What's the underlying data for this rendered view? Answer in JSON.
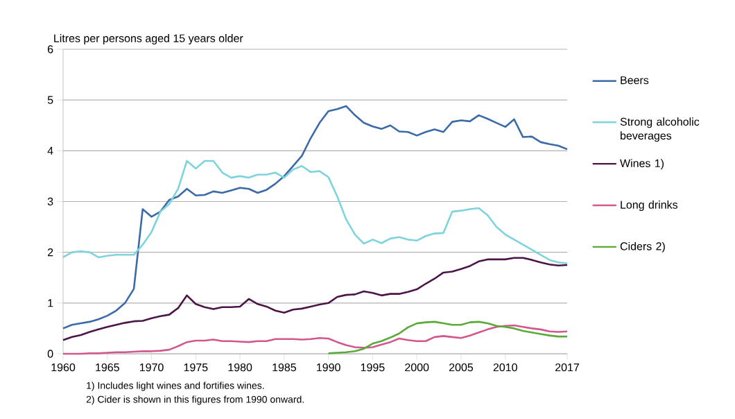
{
  "chart_data": {
    "type": "line",
    "ylabel": "Litres per persons aged 15 years older",
    "x": [
      1960,
      1961,
      1962,
      1963,
      1964,
      1965,
      1966,
      1967,
      1968,
      1969,
      1970,
      1971,
      1972,
      1973,
      1974,
      1975,
      1976,
      1977,
      1978,
      1979,
      1980,
      1981,
      1982,
      1983,
      1984,
      1985,
      1986,
      1987,
      1988,
      1989,
      1990,
      1991,
      1992,
      1993,
      1994,
      1995,
      1996,
      1997,
      1998,
      1999,
      2000,
      2001,
      2002,
      2003,
      2004,
      2005,
      2006,
      2007,
      2008,
      2009,
      2010,
      2011,
      2012,
      2013,
      2014,
      2015,
      2016,
      2017
    ],
    "series": [
      {
        "name": "Beers",
        "color": "#3a6aa8",
        "values": [
          0.5,
          0.57,
          0.6,
          0.63,
          0.68,
          0.75,
          0.85,
          1.0,
          1.28,
          2.85,
          2.7,
          2.8,
          3.03,
          3.1,
          3.25,
          3.12,
          3.13,
          3.2,
          3.17,
          3.22,
          3.27,
          3.25,
          3.17,
          3.23,
          3.35,
          3.5,
          3.7,
          3.9,
          4.25,
          4.55,
          4.78,
          4.82,
          4.88,
          4.7,
          4.55,
          4.48,
          4.43,
          4.5,
          4.38,
          4.37,
          4.3,
          4.37,
          4.42,
          4.37,
          4.57,
          4.6,
          4.58,
          4.7,
          4.63,
          4.55,
          4.47,
          4.62,
          4.27,
          4.28,
          4.17,
          4.13,
          4.1,
          4.03
        ]
      },
      {
        "name": "Strong alcoholic beverages",
        "color": "#7fd3dc",
        "values": [
          1.9,
          2.0,
          2.02,
          2.0,
          1.9,
          1.93,
          1.95,
          1.95,
          1.95,
          2.15,
          2.4,
          2.8,
          2.95,
          3.25,
          3.8,
          3.65,
          3.8,
          3.8,
          3.57,
          3.47,
          3.5,
          3.47,
          3.53,
          3.53,
          3.57,
          3.47,
          3.63,
          3.7,
          3.58,
          3.6,
          3.48,
          3.1,
          2.65,
          2.35,
          2.17,
          2.25,
          2.18,
          2.27,
          2.3,
          2.25,
          2.23,
          2.32,
          2.37,
          2.38,
          2.8,
          2.82,
          2.85,
          2.87,
          2.73,
          2.5,
          2.35,
          2.25,
          2.15,
          2.05,
          1.95,
          1.85,
          1.8,
          1.78
        ]
      },
      {
        "name": "Wines 1)",
        "color": "#4b1548",
        "values": [
          0.27,
          0.33,
          0.37,
          0.43,
          0.48,
          0.53,
          0.57,
          0.61,
          0.64,
          0.65,
          0.7,
          0.74,
          0.77,
          0.9,
          1.15,
          0.98,
          0.92,
          0.88,
          0.92,
          0.92,
          0.93,
          1.08,
          0.98,
          0.93,
          0.85,
          0.81,
          0.87,
          0.89,
          0.93,
          0.97,
          1.0,
          1.12,
          1.16,
          1.17,
          1.23,
          1.2,
          1.15,
          1.18,
          1.18,
          1.22,
          1.27,
          1.38,
          1.48,
          1.6,
          1.62,
          1.67,
          1.73,
          1.82,
          1.86,
          1.86,
          1.86,
          1.89,
          1.89,
          1.85,
          1.8,
          1.76,
          1.74,
          1.75
        ]
      },
      {
        "name": "Long drinks",
        "color": "#d2578b",
        "values": [
          0.0,
          0.0,
          0.0,
          0.01,
          0.01,
          0.02,
          0.03,
          0.03,
          0.04,
          0.05,
          0.05,
          0.06,
          0.08,
          0.15,
          0.23,
          0.26,
          0.26,
          0.28,
          0.25,
          0.25,
          0.24,
          0.23,
          0.25,
          0.25,
          0.29,
          0.29,
          0.29,
          0.28,
          0.29,
          0.31,
          0.3,
          0.23,
          0.17,
          0.13,
          0.12,
          0.13,
          0.18,
          0.23,
          0.3,
          0.27,
          0.25,
          0.25,
          0.33,
          0.35,
          0.33,
          0.31,
          0.36,
          0.42,
          0.48,
          0.53,
          0.55,
          0.56,
          0.53,
          0.5,
          0.48,
          0.44,
          0.43,
          0.44
        ]
      },
      {
        "name": "Ciders 2)",
        "color": "#5aaa3a",
        "x": [
          1990,
          1991,
          1992,
          1993,
          1994,
          1995,
          1996,
          1997,
          1998,
          1999,
          2000,
          2001,
          2002,
          2003,
          2004,
          2005,
          2006,
          2007,
          2008,
          2009,
          2010,
          2011,
          2012,
          2013,
          2014,
          2015,
          2016,
          2017
        ],
        "values": [
          0.01,
          0.02,
          0.03,
          0.05,
          0.1,
          0.2,
          0.25,
          0.32,
          0.4,
          0.52,
          0.6,
          0.62,
          0.63,
          0.6,
          0.57,
          0.57,
          0.62,
          0.63,
          0.6,
          0.55,
          0.53,
          0.5,
          0.45,
          0.42,
          0.39,
          0.36,
          0.34,
          0.34
        ]
      }
    ],
    "xlim": [
      1960,
      2017
    ],
    "xticks": [
      1960,
      1965,
      1970,
      1975,
      1980,
      1985,
      1990,
      1995,
      2000,
      2005,
      2010,
      2017
    ],
    "ylim": [
      0,
      6
    ],
    "yticks": [
      0,
      1,
      2,
      3,
      4,
      5,
      6
    ],
    "grid": "y",
    "legend": "right",
    "annotations": [
      "1) Includes light wines and fortifies wines.",
      "2) Cider is shown in this figures from 1990 onward."
    ]
  }
}
